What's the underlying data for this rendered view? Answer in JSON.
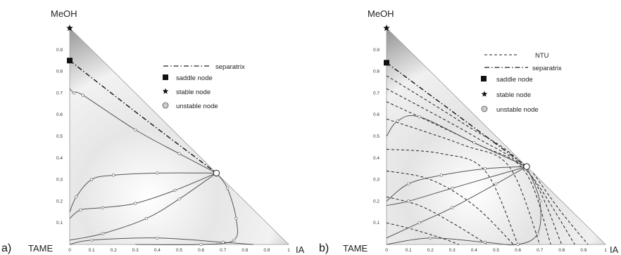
{
  "panels": [
    {
      "id": "a",
      "panel_label": "a)",
      "vertex_labels": {
        "top": "MeOH",
        "bottom_left": "TAME",
        "bottom_right": "IA"
      },
      "x_ticks": [
        "0",
        "0.1",
        "0.2",
        "0.3",
        "0.4",
        "0.5",
        "0.6",
        "0.7",
        "0.8",
        "0.9",
        "1"
      ],
      "y_ticks": [
        "0.1",
        "0.2",
        "0.3",
        "0.4",
        "0.5",
        "0.6",
        "0.7",
        "0.8",
        "0.9"
      ],
      "legend": [
        {
          "symbol": "dash-dot",
          "label": "separatrix"
        },
        {
          "symbol": "square",
          "label": "saddle node"
        },
        {
          "symbol": "star",
          "label": "stable node"
        },
        {
          "symbol": "circle",
          "label": "unstable node"
        }
      ],
      "nodes": {
        "stable": [
          0,
          1
        ],
        "saddle": [
          0,
          0.85
        ],
        "unstable": [
          0.67,
          0.33
        ]
      },
      "separatrix": [
        [
          0,
          0.85
        ],
        [
          0.33,
          0.59
        ],
        [
          0.67,
          0.33
        ]
      ],
      "residue_curves": [
        [
          [
            0,
            0.72
          ],
          [
            0.02,
            0.7
          ],
          [
            0.06,
            0.69
          ],
          [
            0.3,
            0.53
          ],
          [
            0.5,
            0.42
          ],
          [
            0.67,
            0.33
          ]
        ],
        [
          [
            0,
            0.15
          ],
          [
            0.03,
            0.22
          ],
          [
            0.1,
            0.3
          ],
          [
            0.2,
            0.32
          ],
          [
            0.4,
            0.33
          ],
          [
            0.67,
            0.33
          ]
        ],
        [
          [
            0,
            0.12
          ],
          [
            0.05,
            0.16
          ],
          [
            0.15,
            0.17
          ],
          [
            0.3,
            0.19
          ],
          [
            0.48,
            0.25
          ],
          [
            0.67,
            0.33
          ]
        ],
        [
          [
            0,
            0.02
          ],
          [
            0.15,
            0.05
          ],
          [
            0.35,
            0.12
          ],
          [
            0.5,
            0.21
          ],
          [
            0.67,
            0.33
          ]
        ],
        [
          [
            0.3,
            0
          ],
          [
            0.6,
            0
          ],
          [
            0.75,
            0.02
          ],
          [
            0.76,
            0.12
          ],
          [
            0.72,
            0.26
          ],
          [
            0.67,
            0.33
          ]
        ],
        [
          [
            0,
            0
          ],
          [
            0.1,
            0.02
          ],
          [
            0.4,
            0.03
          ],
          [
            0.7,
            0.01
          ],
          [
            0.84,
            0
          ]
        ]
      ],
      "ntu_lines": []
    },
    {
      "id": "b",
      "panel_label": "b)",
      "vertex_labels": {
        "top": "MeOH",
        "bottom_left": "TAME",
        "bottom_right": "IA"
      },
      "x_ticks": [
        "0",
        "0.1",
        "0.2",
        "0.3",
        "0.4",
        "0.5",
        "0.6",
        "0.7",
        "0.8",
        "0.9",
        "1"
      ],
      "y_ticks": [
        "0.1",
        "0.2",
        "0.3",
        "0.4",
        "0.5",
        "0.6",
        "0.7",
        "0.8",
        "0.9"
      ],
      "legend": [
        {
          "symbol": "dashed",
          "label": "NTU"
        },
        {
          "symbol": "dash-dot",
          "label": "separatrix"
        },
        {
          "symbol": "square",
          "label": "saddle node"
        },
        {
          "symbol": "star",
          "label": "stable node"
        },
        {
          "symbol": "circle",
          "label": "unstable node"
        }
      ],
      "nodes": {
        "stable": [
          0,
          1
        ],
        "saddle": [
          0,
          0.84
        ],
        "unstable": [
          0.64,
          0.36
        ]
      },
      "separatrix": [
        [
          0,
          0.84
        ],
        [
          0.32,
          0.6
        ],
        [
          0.64,
          0.36
        ]
      ],
      "residue_curves": [
        [
          [
            0,
            0.5
          ],
          [
            0.05,
            0.57
          ],
          [
            0.15,
            0.59
          ],
          [
            0.4,
            0.47
          ],
          [
            0.64,
            0.36
          ]
        ],
        [
          [
            0,
            0.2
          ],
          [
            0.1,
            0.28
          ],
          [
            0.25,
            0.32
          ],
          [
            0.45,
            0.35
          ],
          [
            0.64,
            0.36
          ]
        ],
        [
          [
            0,
            0.03
          ],
          [
            0.15,
            0.1
          ],
          [
            0.3,
            0.17
          ],
          [
            0.5,
            0.28
          ],
          [
            0.64,
            0.36
          ]
        ],
        [
          [
            0,
            0
          ],
          [
            0.2,
            0.03
          ],
          [
            0.45,
            0.01
          ],
          [
            0.6,
            0
          ],
          [
            0.69,
            0.05
          ],
          [
            0.7,
            0.2
          ],
          [
            0.64,
            0.36
          ]
        ],
        [
          [
            0,
            0.18
          ],
          [
            0.1,
            0.2
          ],
          [
            0.3,
            0.26
          ],
          [
            0.64,
            0.36
          ]
        ]
      ],
      "ntu_lines": [
        [
          [
            0,
            0.78
          ],
          [
            0.35,
            0.56
          ],
          [
            0.62,
            0.37
          ],
          [
            0.86,
            0
          ]
        ],
        [
          [
            0,
            0.72
          ],
          [
            0.4,
            0.5
          ],
          [
            0.65,
            0.33
          ],
          [
            0.8,
            0
          ]
        ],
        [
          [
            0,
            0.66
          ],
          [
            0.4,
            0.47
          ],
          [
            0.63,
            0.34
          ],
          [
            0.75,
            0
          ]
        ],
        [
          [
            0,
            0.58
          ],
          [
            0.35,
            0.46
          ],
          [
            0.56,
            0.36
          ],
          [
            0.7,
            0
          ]
        ],
        [
          [
            0,
            0.44
          ],
          [
            0.25,
            0.42
          ],
          [
            0.45,
            0.34
          ],
          [
            0.6,
            0
          ]
        ],
        [
          [
            0,
            0.34
          ],
          [
            0.2,
            0.3
          ],
          [
            0.4,
            0.18
          ],
          [
            0.58,
            0
          ]
        ],
        [
          [
            0,
            0.22
          ],
          [
            0.15,
            0.18
          ],
          [
            0.3,
            0.1
          ],
          [
            0.46,
            0
          ]
        ],
        [
          [
            0,
            0.1
          ],
          [
            0.12,
            0.07
          ],
          [
            0.25,
            0.03
          ],
          [
            0.33,
            0
          ]
        ],
        [
          [
            0.67,
            0.33
          ],
          [
            0.79,
            0.16
          ],
          [
            0.92,
            0
          ]
        ]
      ]
    }
  ]
}
